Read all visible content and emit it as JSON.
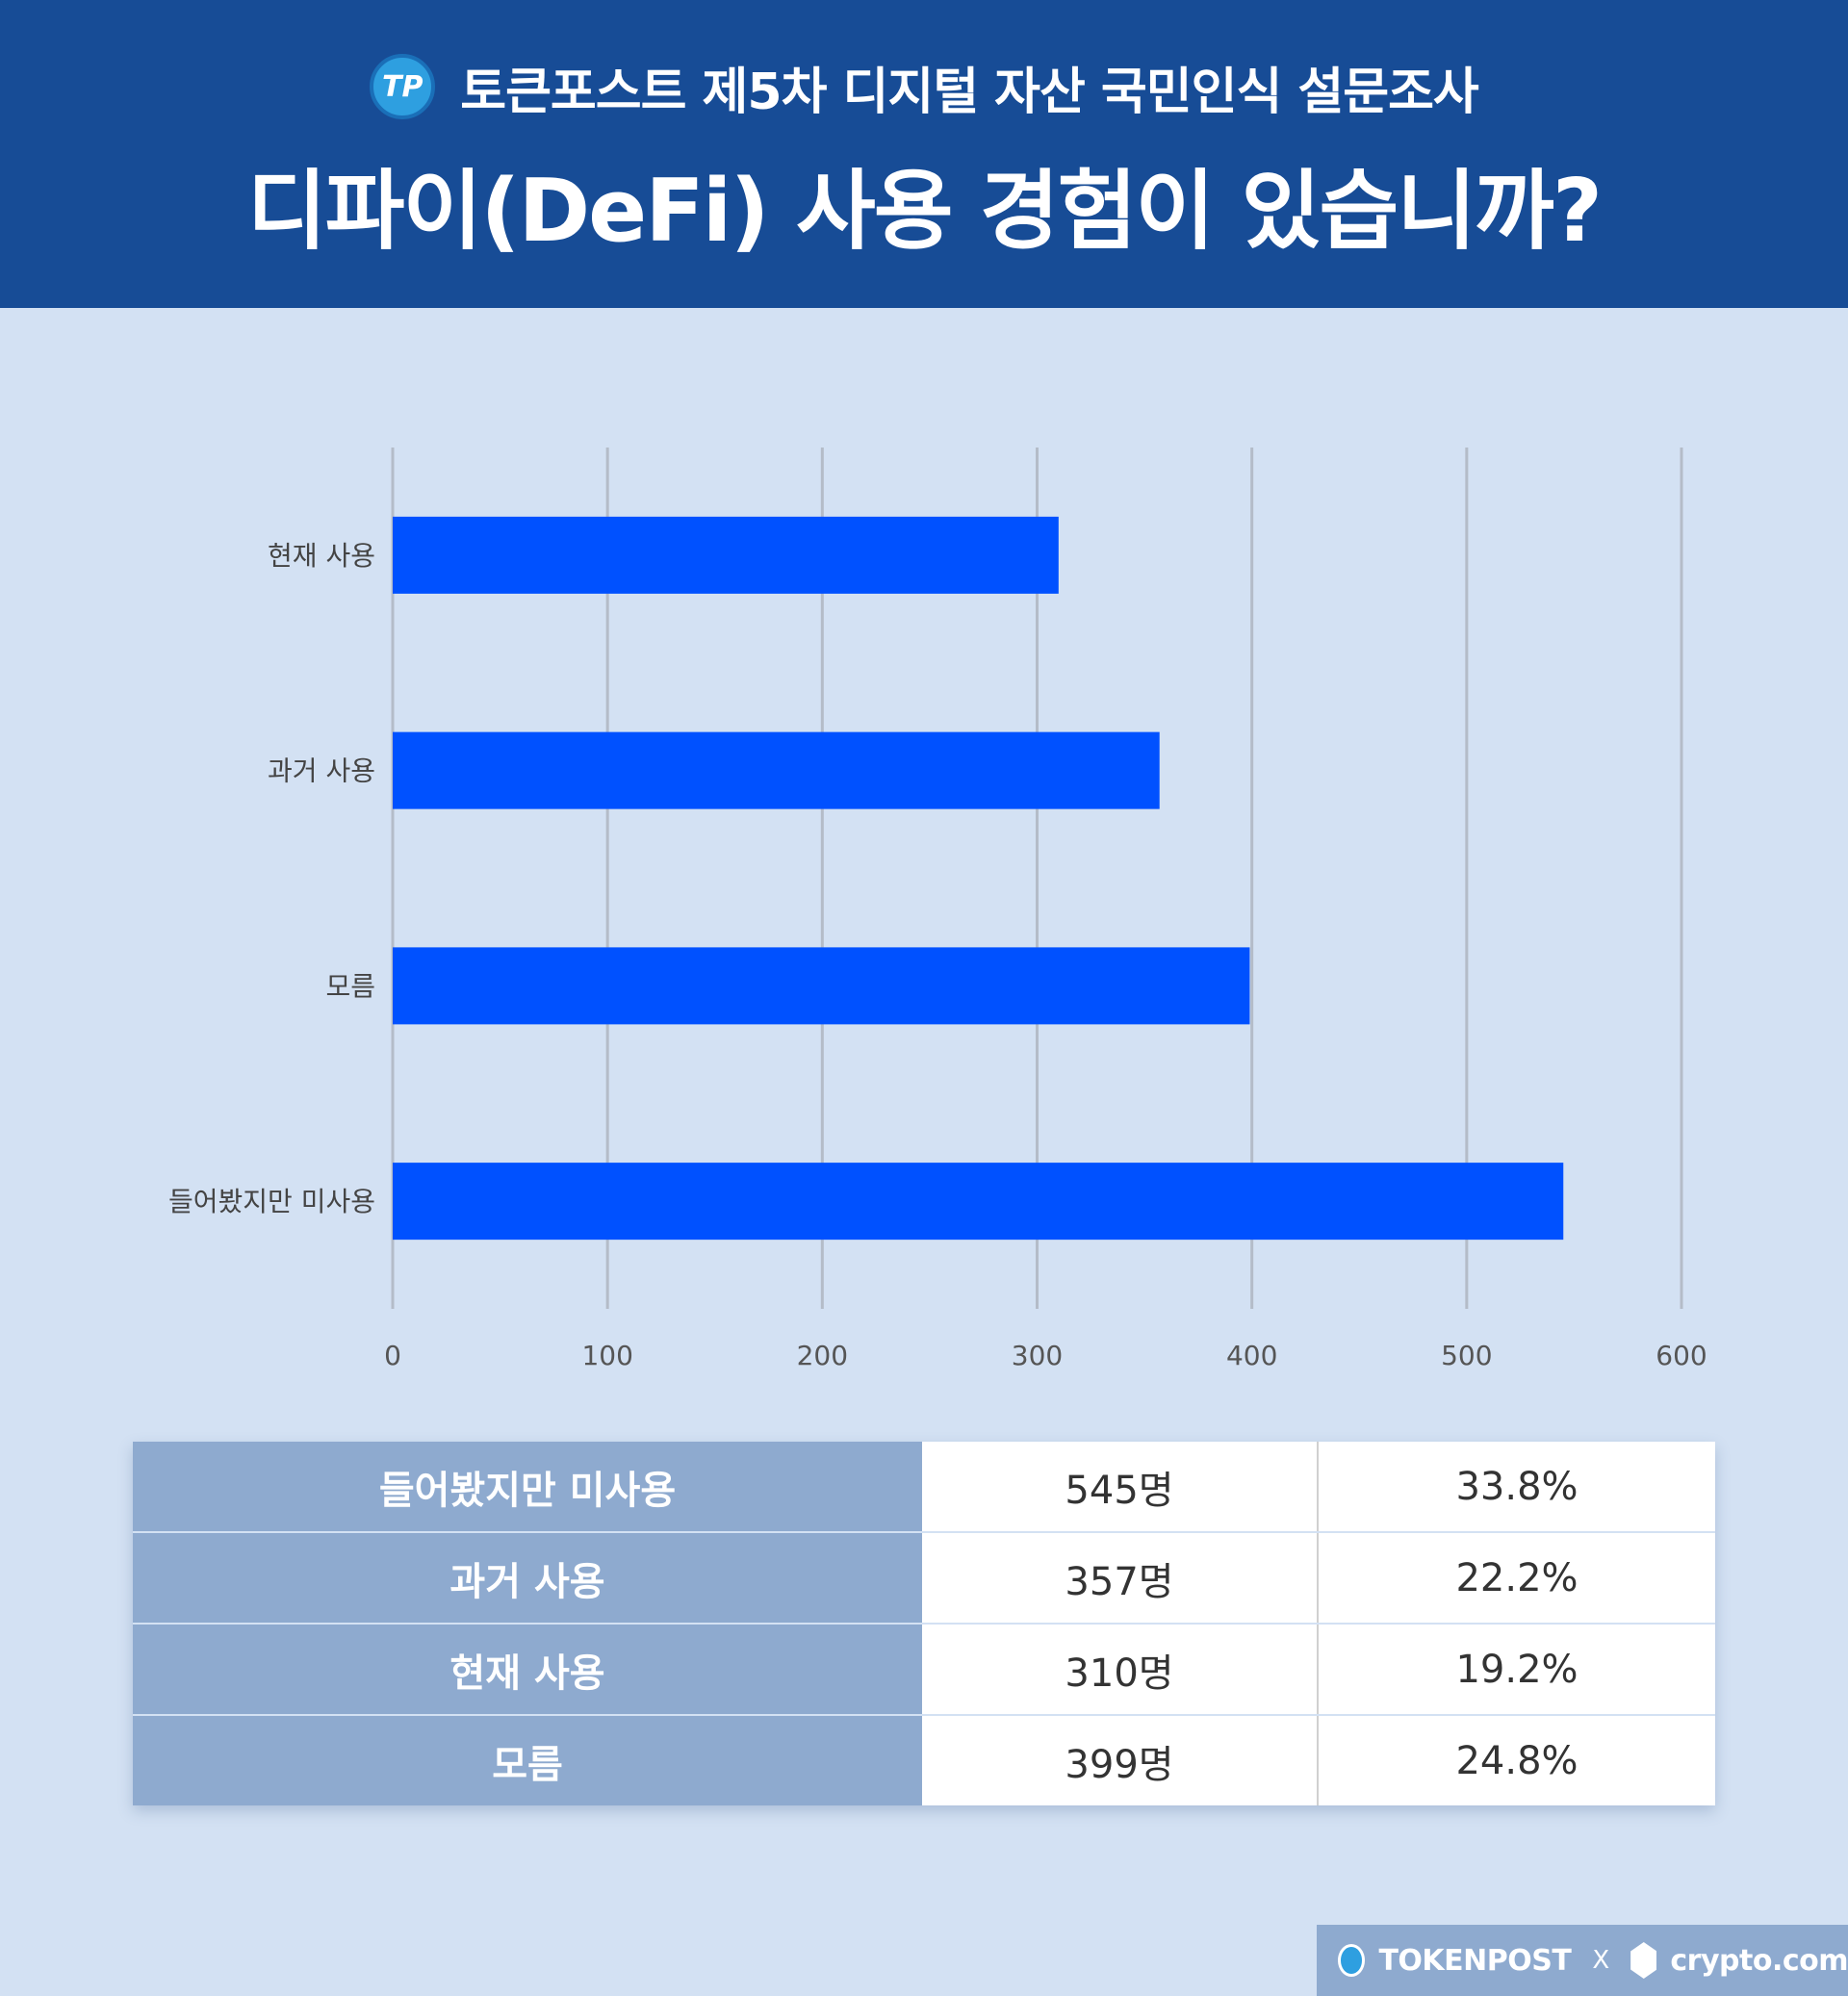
{
  "header": {
    "brand": "토큰포스트 제5차 디지털 자산 국민인식 설문조사",
    "title": "디파이(DeFi) 사용 경험이 있습니까?"
  },
  "chart_data": {
    "type": "bar",
    "orientation": "horizontal",
    "categories": [
      "현재 사용",
      "과거 사용",
      "모름",
      "들어봤지만 미사용"
    ],
    "values": [
      310,
      357,
      399,
      545
    ],
    "xlim": [
      0,
      600
    ],
    "xticks": [
      "0",
      "100",
      "200",
      "300",
      "400",
      "500",
      "600"
    ],
    "grid": true,
    "bar_color": "#0051ff"
  },
  "table": {
    "rows": [
      {
        "label": "들어봤지만 미사용",
        "count": "545명",
        "pct": "33.8%"
      },
      {
        "label": "과거 사용",
        "count": "357명",
        "pct": "22.2%"
      },
      {
        "label": "현재 사용",
        "count": "310명",
        "pct": "19.2%"
      },
      {
        "label": "모름",
        "count": "399명",
        "pct": "24.8%"
      }
    ]
  },
  "footer": {
    "brand1": "TOKENPOST",
    "separator": "X",
    "brand2": "crypto.com"
  }
}
